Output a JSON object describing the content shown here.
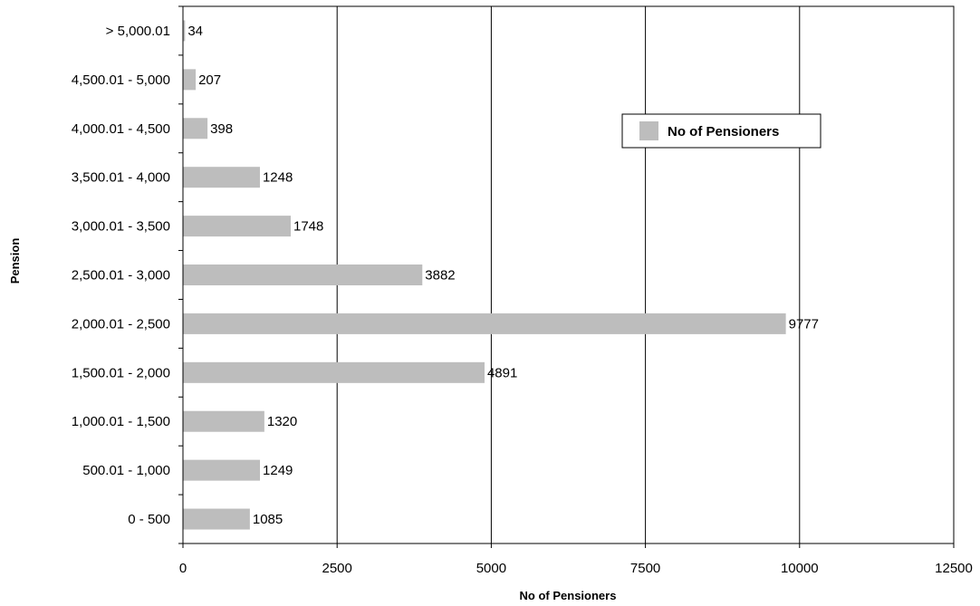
{
  "chart_data": {
    "type": "bar",
    "orientation": "horizontal",
    "categories": [
      "0 - 500",
      "500.01 - 1,000",
      "1,000.01 - 1,500",
      "1,500.01 - 2,000",
      "2,000.01 - 2,500",
      "2,500.01 - 3,000",
      "3,000.01 - 3,500",
      "3,500.01 - 4,000",
      "4,000.01 - 4,500",
      "4,500.01 - 5,000",
      "> 5,000.01"
    ],
    "series": [
      {
        "name": "No of Pensioners",
        "values": [
          1085,
          1249,
          1320,
          4891,
          9777,
          3882,
          1748,
          1248,
          398,
          207,
          34
        ]
      }
    ],
    "xlabel": "No of Pensioners",
    "ylabel": "Pension",
    "xlim": [
      0,
      12500
    ],
    "xticks": [
      "0",
      "2500",
      "5000",
      "7500",
      "10000",
      "12500"
    ],
    "grid": "vertical",
    "legend": "top-right",
    "bar_color": "#bdbdbd"
  }
}
